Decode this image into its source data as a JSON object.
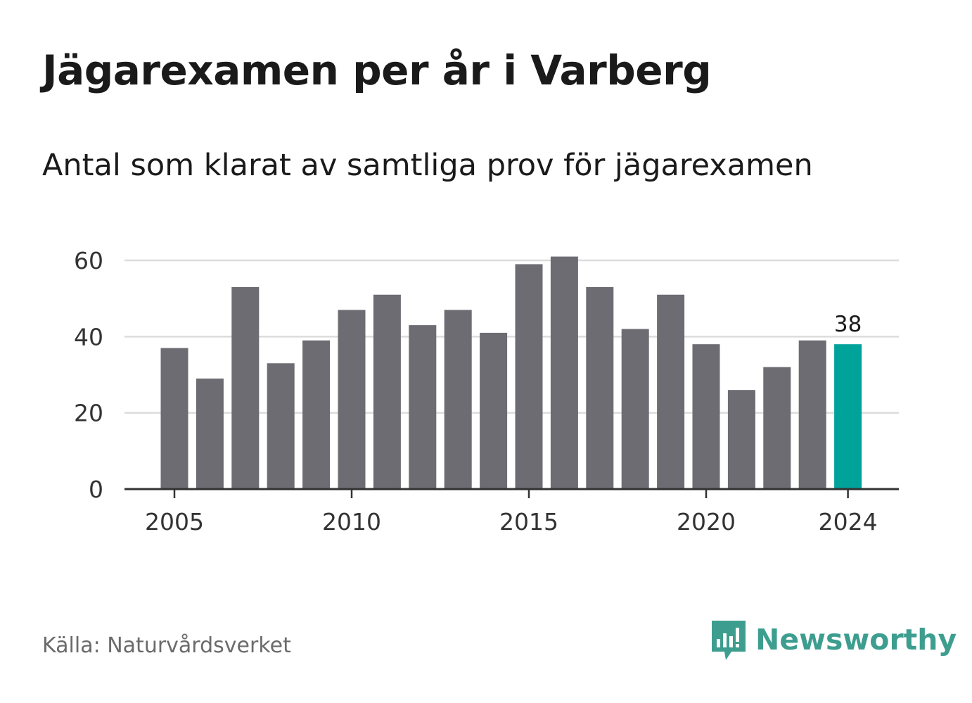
{
  "title": "Jägarexamen per år i Varberg",
  "subtitle": "Antal som klarat av samtliga prov för jägarexamen",
  "source": "Källa: Naturvårdsverket",
  "brand": {
    "name": "Newsworthy",
    "color": "#3d9e8f",
    "icon": "newsworthy-chart-bubble-icon"
  },
  "colors": {
    "bar": "#6d6c73",
    "highlight": "#00a39a",
    "grid": "#dcdcdc",
    "axis": "#333333"
  },
  "chart_data": {
    "type": "bar",
    "title": "Jägarexamen per år i Varberg",
    "subtitle": "Antal som klarat av samtliga prov för jägarexamen",
    "x": [
      2005,
      2006,
      2007,
      2008,
      2009,
      2010,
      2011,
      2012,
      2013,
      2014,
      2015,
      2016,
      2017,
      2018,
      2019,
      2020,
      2021,
      2022,
      2023,
      2024
    ],
    "values": [
      37,
      29,
      53,
      33,
      39,
      47,
      51,
      43,
      47,
      41,
      59,
      61,
      53,
      42,
      51,
      38,
      26,
      32,
      39,
      38
    ],
    "x_tick_labels": [
      "2005",
      "2010",
      "2015",
      "2020",
      "2024"
    ],
    "y_ticks": [
      0,
      20,
      40,
      60
    ],
    "ylim": [
      0,
      60
    ],
    "grid": true,
    "highlight": {
      "x": 2024,
      "label": "38"
    },
    "xlabel": "",
    "ylabel": ""
  }
}
